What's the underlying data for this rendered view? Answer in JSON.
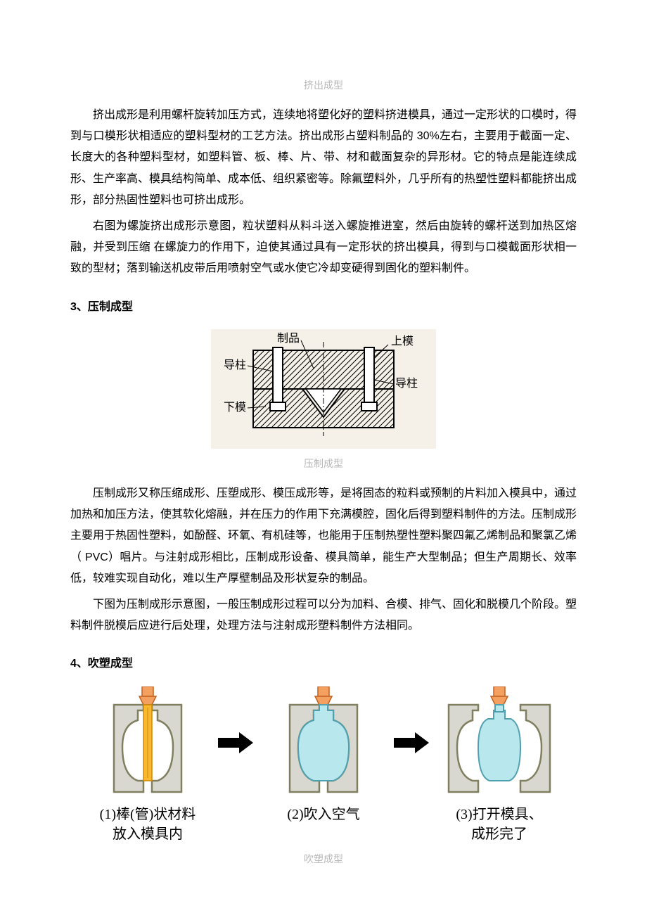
{
  "captions": {
    "c1": "挤出成型",
    "c2": "压制成型",
    "c3": "吹塑成型"
  },
  "paragraphs": {
    "p1": "挤出成形是利用螺杆旋转加压方式，连续地将塑化好的塑料挤进模具，通过一定形状的口模时，得到与口模形状相适应的塑料型材的工艺方法。挤出成形占塑料制品的 30%左右，主要用于截面一定、长度大的各种塑料型材，如塑料管、板、棒、片、带、材和截面复杂的异形材。它的特点是能连续成形、生产率高、模具结构简单、成本低、组织紧密等。除氟塑料外，几乎所有的热塑性塑料都能挤出成形，部分热固性塑料也可挤出成形。",
    "p2": "右图为螺旋挤出成形示意图，粒状塑料从料斗送入螺旋推进室，然后由旋转的螺杆送到加热区熔融，并受到压缩 在螺旋力的作用下，迫使其通过具有一定形状的挤出模具，得到与口模截面形状相一致的型材；落到输送机皮带后用喷射空气或水使它冷却变硬得到固化的塑料制件。",
    "p3": "压制成形又称压缩成形、压塑成形、模压成形等，是将固态的粒料或预制的片料加入模具中，通过加热和加压方法，使其软化熔融，并在压力的作用下充满模腔，固化后得到塑料制件的方法。压制成形主要用于热固性塑料，如酚醛、环氧、有机硅等，也能用于压制热塑性塑料聚四氟乙烯制品和聚氯乙烯（ PVC）唱片。与注射成形相比，压制成形设备、模具简单，能生产大型制品；但生产周期长、效率低，较难实现自动化，难以生产厚壁制品及形状复杂的制品。",
    "p4": "下图为压制成形示意图，一般压制成形过程可以分为加料、合模、排气、固化和脱模几个阶段。塑料制件脱模后应进行后处理，处理方法与注射成形塑料制件方法相同。"
  },
  "headings": {
    "h3": "3、压制成型",
    "h4": "4、吹塑成型"
  },
  "fig1": {
    "labels": {
      "zhipin": "制品",
      "shangmu": "上模",
      "daozhu1": "导柱",
      "daozhu2": "导柱",
      "xiamu": "下模"
    },
    "colors": {
      "stroke": "#000000",
      "bg": "#f5f1e8",
      "hatch": "#000000"
    },
    "fontsize": 16
  },
  "fig2": {
    "steps": {
      "s1": "(1)棒(管)状材料\n放入模具内",
      "s2": "(2)吹入空气",
      "s3": "(3)打开模具、\n成形完了"
    },
    "colors": {
      "mold": "#d8d8d0",
      "mold_stroke": "#808060",
      "air": "#b8e8ee",
      "nozzle": "#f4a060",
      "preform": "#f8b830",
      "arrow": "#000000"
    }
  }
}
